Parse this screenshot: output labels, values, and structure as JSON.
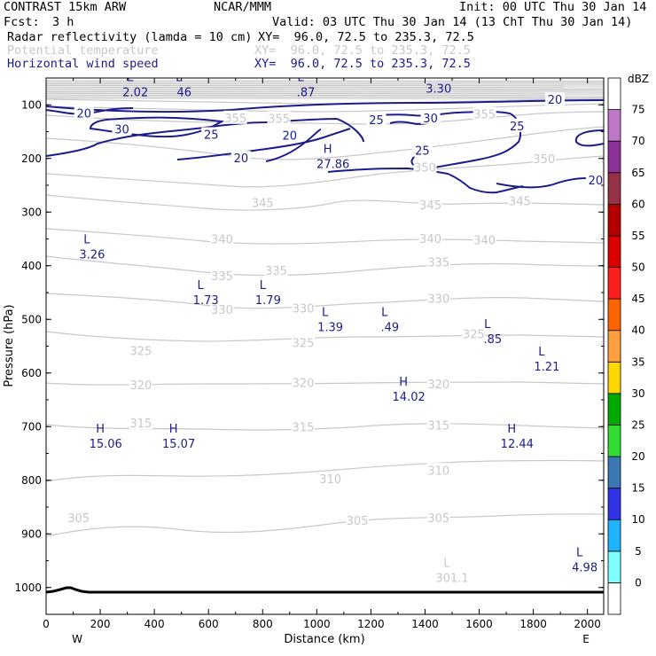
{
  "header": {
    "title": "CONTRAST 15km ARW",
    "center": "NCAR/MMM",
    "init": "Init: 00 UTC Thu 30 Jan 14",
    "fcst_label": "Fcst:",
    "fcst_value": "3 h",
    "valid": "Valid: 03 UTC Thu 30 Jan 14 (13 ChT Thu 30 Jan 14)",
    "fields": [
      {
        "name": "Radar reflectivity (lamda = 10 cm)",
        "xy": "XY=  96.0, 72.5 to 235.3, 72.5",
        "color": "#000000"
      },
      {
        "name": "Potential temperature",
        "xy": "XY=  96.0, 72.5 to 235.3, 72.5",
        "color": "#c8c8c8"
      },
      {
        "name": "Horizontal wind speed",
        "xy": "XY=  96.0, 72.5 to 235.3, 72.5",
        "color": "#1c1c8c"
      }
    ]
  },
  "chart_data": {
    "type": "cross-section",
    "xlabel": "Distance (km)",
    "ylabel": "Pressure (hPa)",
    "xlim": [
      0,
      2060
    ],
    "ylim": [
      1050,
      50
    ],
    "x_ticks": [
      0,
      200,
      400,
      600,
      800,
      1000,
      1200,
      1400,
      1600,
      1800,
      2000
    ],
    "y_ticks": [
      100,
      200,
      300,
      400,
      500,
      600,
      700,
      800,
      900,
      1000
    ],
    "x_end_labels": {
      "left": "W",
      "right": "E"
    },
    "colorbar": {
      "unit": "dBZ",
      "levels": [
        0,
        5,
        10,
        15,
        20,
        25,
        30,
        35,
        40,
        45,
        50,
        55,
        60,
        65,
        70,
        75
      ],
      "colors": [
        "#ffffff",
        "#7fffff",
        "#1eb4ff",
        "#3232e6",
        "#3c78b4",
        "#32dc32",
        "#00aa00",
        "#ffd700",
        "#ffa040",
        "#ff6400",
        "#ff1e1e",
        "#dc0000",
        "#b40000",
        "#963246",
        "#8c3296",
        "#bf78c8",
        "#ffffff"
      ]
    },
    "theta_labels": [
      {
        "value": "305",
        "x": 120,
        "p": 870
      },
      {
        "value": "305",
        "x": 1150,
        "p": 875
      },
      {
        "value": "305",
        "x": 1450,
        "p": 870
      },
      {
        "value": "310",
        "x": 1050,
        "p": 797
      },
      {
        "value": "310",
        "x": 1450,
        "p": 781
      },
      {
        "value": "315",
        "x": 350,
        "p": 693
      },
      {
        "value": "315",
        "x": 950,
        "p": 700
      },
      {
        "value": "315",
        "x": 1450,
        "p": 697
      },
      {
        "value": "320",
        "x": 350,
        "p": 622
      },
      {
        "value": "320",
        "x": 950,
        "p": 618
      },
      {
        "value": "320",
        "x": 1450,
        "p": 620
      },
      {
        "value": "325",
        "x": 350,
        "p": 558
      },
      {
        "value": "325",
        "x": 950,
        "p": 543
      },
      {
        "value": "325",
        "x": 1580,
        "p": 527
      },
      {
        "value": "330",
        "x": 650,
        "p": 481
      },
      {
        "value": "330",
        "x": 950,
        "p": 479
      },
      {
        "value": "330",
        "x": 1450,
        "p": 461
      },
      {
        "value": "335",
        "x": 650,
        "p": 419
      },
      {
        "value": "335",
        "x": 850,
        "p": 409
      },
      {
        "value": "335",
        "x": 1450,
        "p": 393
      },
      {
        "value": "340",
        "x": 650,
        "p": 350
      },
      {
        "value": "340",
        "x": 1420,
        "p": 349
      },
      {
        "value": "340",
        "x": 1620,
        "p": 352
      },
      {
        "value": "345",
        "x": 800,
        "p": 282
      },
      {
        "value": "345",
        "x": 1420,
        "p": 286
      },
      {
        "value": "345",
        "x": 1750,
        "p": 279
      },
      {
        "value": "350",
        "x": 1400,
        "p": 216
      },
      {
        "value": "350",
        "x": 1840,
        "p": 200
      },
      {
        "value": "355",
        "x": 700,
        "p": 124
      },
      {
        "value": "355",
        "x": 860,
        "p": 125
      },
      {
        "value": "355",
        "x": 1620,
        "p": 117
      }
    ],
    "wind_labels": [
      {
        "value": "20",
        "x": 140,
        "p": 115
      },
      {
        "value": "30",
        "x": 280,
        "p": 145
      },
      {
        "value": "25",
        "x": 610,
        "p": 155
      },
      {
        "value": "20",
        "x": 900,
        "p": 157
      },
      {
        "value": "20",
        "x": 720,
        "p": 199
      },
      {
        "value": "25",
        "x": 1220,
        "p": 128
      },
      {
        "value": "30",
        "x": 1420,
        "p": 124
      },
      {
        "value": "25",
        "x": 1390,
        "p": 185
      },
      {
        "value": "25",
        "x": 1740,
        "p": 139
      },
      {
        "value": "20",
        "x": 1880,
        "p": 90
      },
      {
        "value": "20",
        "x": 2030,
        "p": 240
      }
    ],
    "extrema": [
      {
        "type": "L",
        "value": "2.02",
        "x": 330,
        "p": 77,
        "color": "#1c1c8c"
      },
      {
        "type": "L",
        "value": "46",
        "x": 510,
        "p": 77,
        "color": "#1c1c8c"
      },
      {
        "type": "L",
        "value": ".87",
        "x": 960,
        "p": 77,
        "color": "#1c1c8c"
      },
      {
        "type": "L",
        "value": "3.30",
        "x": 1450,
        "p": 71,
        "color": "#1c1c8c"
      },
      {
        "type": "H",
        "value": "27.86",
        "x": 1060,
        "p": 211,
        "color": "#1c1c8c"
      },
      {
        "type": "L",
        "value": "3.26",
        "x": 170,
        "p": 380,
        "color": "#1c1c8c"
      },
      {
        "type": "L",
        "value": "1.73",
        "x": 590,
        "p": 465,
        "color": "#1c1c8c"
      },
      {
        "type": "L",
        "value": "1.79",
        "x": 820,
        "p": 465,
        "color": "#1c1c8c"
      },
      {
        "type": "L",
        "value": "1.39",
        "x": 1050,
        "p": 515,
        "color": "#1c1c8c"
      },
      {
        "type": "L",
        "value": ".49",
        "x": 1270,
        "p": 515,
        "color": "#1c1c8c"
      },
      {
        "type": "L",
        "value": ".85",
        "x": 1650,
        "p": 538,
        "color": "#1c1c8c"
      },
      {
        "type": "L",
        "value": "1.21",
        "x": 1850,
        "p": 589,
        "color": "#1c1c8c"
      },
      {
        "type": "H",
        "value": "14.02",
        "x": 1340,
        "p": 645,
        "color": "#1c1c8c"
      },
      {
        "type": "H",
        "value": "15.06",
        "x": 220,
        "p": 733,
        "color": "#1c1c8c"
      },
      {
        "type": "H",
        "value": "15.07",
        "x": 490,
        "p": 733,
        "color": "#1c1c8c"
      },
      {
        "type": "H",
        "value": "12.44",
        "x": 1740,
        "p": 733,
        "color": "#1c1c8c"
      },
      {
        "type": "L",
        "value": "4.98",
        "x": 1990,
        "p": 963,
        "color": "#1c1c8c"
      },
      {
        "type": "L",
        "value": "301.1",
        "x": 1500,
        "p": 983,
        "color": "#c8c8c8"
      }
    ],
    "colors": {
      "theta": "#c8c8c8",
      "wind": "#1c1c8c",
      "text": "#1c1c8c",
      "axis": "#000000"
    }
  }
}
